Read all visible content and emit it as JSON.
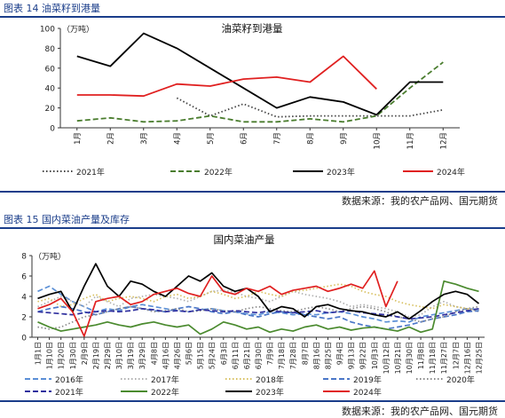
{
  "figure1": {
    "label": "图表 14  油菜籽到港量",
    "source": "数据来源：我的农产品网、国元期货"
  },
  "figure2": {
    "label": "图表 15  国内菜油产量及库存",
    "source": "数据来源：我的农产品网、国元期货"
  },
  "colors": {
    "2016": "#5b8fd6",
    "2017": "#b0b0b0",
    "2018": "#d8c060",
    "2019": "#4b77c8",
    "2020": "#8a8a8a",
    "2021": "#2e2e9e",
    "2022": "#4a8a2e",
    "2023": "#000000",
    "2024": "#e02020",
    "2021a": "#444444",
    "2022a": "#4a7d2e",
    "title_blue": "#1a3d8a"
  },
  "chart_data": [
    {
      "type": "line",
      "title": "油菜籽到港量",
      "unit": "（万吨）",
      "categories": [
        "1月",
        "2月",
        "3月",
        "4月",
        "5月",
        "6月",
        "7月",
        "8月",
        "9月",
        "10月",
        "11月",
        "12月"
      ],
      "ylim": [
        0,
        100
      ],
      "yticks": [
        0,
        20,
        40,
        60,
        80,
        100
      ],
      "legend_position": "bottom",
      "series": [
        {
          "name": "2021年",
          "style": "dotted",
          "values": [
            null,
            null,
            null,
            30,
            12,
            24,
            11,
            12,
            12,
            12,
            12,
            18
          ]
        },
        {
          "name": "2022年",
          "style": "dashed",
          "values": [
            7,
            10,
            6,
            7,
            12,
            6,
            6,
            9,
            6,
            12,
            40,
            66
          ]
        },
        {
          "name": "2023年",
          "style": "solid",
          "values": [
            72,
            62,
            95,
            80,
            60,
            40,
            20,
            31,
            26,
            13,
            46,
            46
          ]
        },
        {
          "name": "2024年",
          "style": "solid",
          "values": [
            33,
            33,
            32,
            44,
            42,
            49,
            51,
            46,
            72,
            39,
            null,
            null
          ]
        }
      ]
    },
    {
      "type": "line",
      "title": "国内菜油产量",
      "unit": "（万吨）",
      "ylim": [
        0,
        8
      ],
      "yticks": [
        0,
        2,
        4,
        6,
        8
      ],
      "categories": [
        "1月1日",
        "1月10日",
        "1月20日",
        "1月30日",
        "2月9日",
        "2月19日",
        "2月29日",
        "3月10日",
        "3月19日",
        "3月29日",
        "4月8日",
        "4月16日",
        "4月26日",
        "5月6日",
        "5月15日",
        "5月24日",
        "6月3日",
        "6月11日",
        "6月21日",
        "6月30日",
        "7月9日",
        "7月18日",
        "7月28日",
        "8月7日",
        "8月16日",
        "8月25日",
        "9月4日",
        "9月13日",
        "9月22日",
        "10月3日",
        "10月12日",
        "10月21日",
        "10月30日",
        "11月8日",
        "11月18日",
        "11月27日",
        "12月7日",
        "12月16日",
        "12月25日"
      ],
      "legend_position": "bottom",
      "series": [
        {
          "name": "2016年",
          "style": "dashed",
          "values": [
            4.5,
            5.0,
            4.2,
            3.5,
            3.0,
            2.5,
            2.8,
            2.6,
            3.0,
            3.2,
            3.0,
            2.8,
            2.6,
            2.5,
            2.7,
            2.8,
            2.6,
            2.5,
            2.3,
            2.2,
            2.5,
            2.4,
            2.2,
            2.3,
            2.2,
            2.4,
            2.5,
            2.3,
            2.0,
            1.8,
            1.5,
            1.6,
            1.5,
            2.0,
            2.2,
            2.4,
            2.6,
            2.8,
            2.7
          ]
        },
        {
          "name": "2017年",
          "style": "dotted",
          "values": [
            3.0,
            3.5,
            4.0,
            3.5,
            3.0,
            4.0,
            3.5,
            3.0,
            3.8,
            4.0,
            4.2,
            4.0,
            3.8,
            3.5,
            4.0,
            4.5,
            4.6,
            4.4,
            4.0,
            3.8,
            3.5,
            4.0,
            4.5,
            4.2,
            4.0,
            3.8,
            3.5,
            3.0,
            3.2,
            3.0,
            2.8,
            2.5,
            2.0,
            2.2,
            3.0,
            3.5,
            3.0,
            2.8,
            2.5
          ]
        },
        {
          "name": "2018年",
          "style": "dotted",
          "values": [
            3.5,
            3.8,
            3.0,
            3.2,
            3.8,
            4.2,
            3.5,
            3.8,
            4.0,
            3.8,
            3.5,
            4.0,
            4.2,
            3.8,
            4.0,
            4.5,
            4.2,
            3.8,
            4.0,
            4.5,
            4.2,
            4.0,
            4.5,
            4.6,
            4.8,
            5.0,
            5.2,
            5.0,
            4.5,
            4.2,
            4.0,
            3.5,
            3.2,
            3.0,
            2.8,
            3.2,
            3.0,
            2.8,
            2.6
          ]
        },
        {
          "name": "2019年",
          "style": "dashed",
          "values": [
            2.5,
            2.8,
            3.0,
            2.8,
            2.5,
            2.2,
            2.5,
            2.8,
            3.0,
            2.8,
            2.6,
            2.5,
            2.8,
            3.0,
            2.8,
            2.5,
            2.3,
            2.5,
            2.2,
            2.0,
            2.3,
            2.5,
            2.4,
            2.2,
            2.0,
            1.8,
            2.0,
            1.5,
            1.2,
            1.0,
            0.8,
            1.0,
            1.2,
            1.5,
            1.8,
            2.0,
            2.2,
            2.5,
            2.6
          ]
        },
        {
          "name": "2020年",
          "style": "dotted",
          "values": [
            1.0,
            0.8,
            1.0,
            1.5,
            2.0,
            2.2,
            2.5,
            2.8,
            3.0,
            2.8,
            2.5,
            2.6,
            2.8,
            2.5,
            2.6,
            2.8,
            2.6,
            2.5,
            2.8,
            3.0,
            2.8,
            2.6,
            2.5,
            2.8,
            3.0,
            2.8,
            2.5,
            2.8,
            3.0,
            2.8,
            2.5,
            2.0,
            1.8,
            1.5,
            1.8,
            2.0,
            2.5,
            2.8,
            3.0
          ]
        },
        {
          "name": "2021年",
          "style": "dashed",
          "values": [
            2.5,
            2.4,
            2.3,
            2.2,
            2.4,
            2.5,
            2.6,
            2.5,
            2.6,
            2.8,
            2.7,
            2.5,
            2.6,
            2.5,
            2.7,
            2.6,
            2.5,
            2.6,
            2.5,
            2.4,
            2.6,
            2.5,
            2.4,
            2.5,
            2.6,
            2.4,
            2.5,
            2.6,
            2.4,
            2.3,
            2.2,
            2.0,
            1.8,
            1.9,
            2.0,
            2.2,
            2.4,
            2.6,
            2.8
          ]
        },
        {
          "name": "2022年",
          "style": "solid",
          "values": [
            1.5,
            1.0,
            0.6,
            0.8,
            1.0,
            1.2,
            1.5,
            1.2,
            1.0,
            1.3,
            1.5,
            1.2,
            1.0,
            1.2,
            0.3,
            0.8,
            1.5,
            1.2,
            0.8,
            1.0,
            0.5,
            0.8,
            0.6,
            1.0,
            1.2,
            0.8,
            1.0,
            0.7,
            0.9,
            1.0,
            0.8,
            0.6,
            1.0,
            0.5,
            0.8,
            5.5,
            5.2,
            4.8,
            4.5
          ]
        },
        {
          "name": "2023年",
          "style": "solid",
          "values": [
            3.8,
            4.2,
            4.5,
            2.5,
            5.0,
            7.2,
            5.0,
            4.0,
            5.5,
            5.2,
            4.5,
            4.0,
            5.0,
            6.0,
            5.5,
            6.3,
            5.0,
            4.5,
            4.8,
            4.0,
            2.5,
            3.0,
            2.8,
            2.0,
            3.0,
            3.2,
            2.8,
            2.6,
            2.5,
            2.2,
            2.0,
            2.5,
            1.8,
            2.6,
            3.5,
            4.2,
            4.5,
            4.2,
            3.3
          ]
        },
        {
          "name": "2024年",
          "style": "solid",
          "values": [
            2.8,
            3.2,
            3.8,
            2.5,
            0.1,
            3.5,
            3.8,
            4.0,
            3.2,
            3.5,
            4.2,
            4.5,
            4.8,
            4.3,
            4.0,
            6.0,
            4.5,
            4.2,
            4.8,
            4.5,
            5.0,
            4.2,
            4.6,
            4.8,
            5.0,
            4.5,
            4.8,
            5.2,
            4.8,
            6.5,
            3.0,
            5.5,
            null,
            null,
            null,
            null,
            null,
            null,
            null
          ]
        }
      ]
    }
  ]
}
